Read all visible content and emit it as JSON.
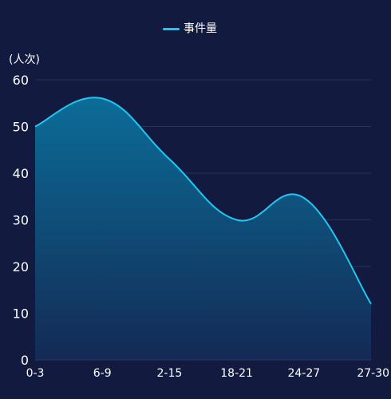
{
  "legend": {
    "series_name": "事件量",
    "color": "#1ec8f2"
  },
  "y_unit": "(人次)",
  "chart_data": {
    "type": "area",
    "categories": [
      "0-3",
      "6-9",
      "2-15",
      "18-21",
      "24-27",
      "27-30"
    ],
    "series": [
      {
        "name": "事件量",
        "values": [
          50,
          56,
          43,
          30,
          34.7,
          12
        ],
        "color": "#1ec8f2"
      }
    ],
    "y_ticks": [
      0,
      10,
      20,
      30,
      40,
      50,
      60
    ],
    "ylim": [
      0,
      60
    ],
    "ylabel": "(人次)",
    "grid": true,
    "smooth": true,
    "legend_position": "top-center"
  }
}
